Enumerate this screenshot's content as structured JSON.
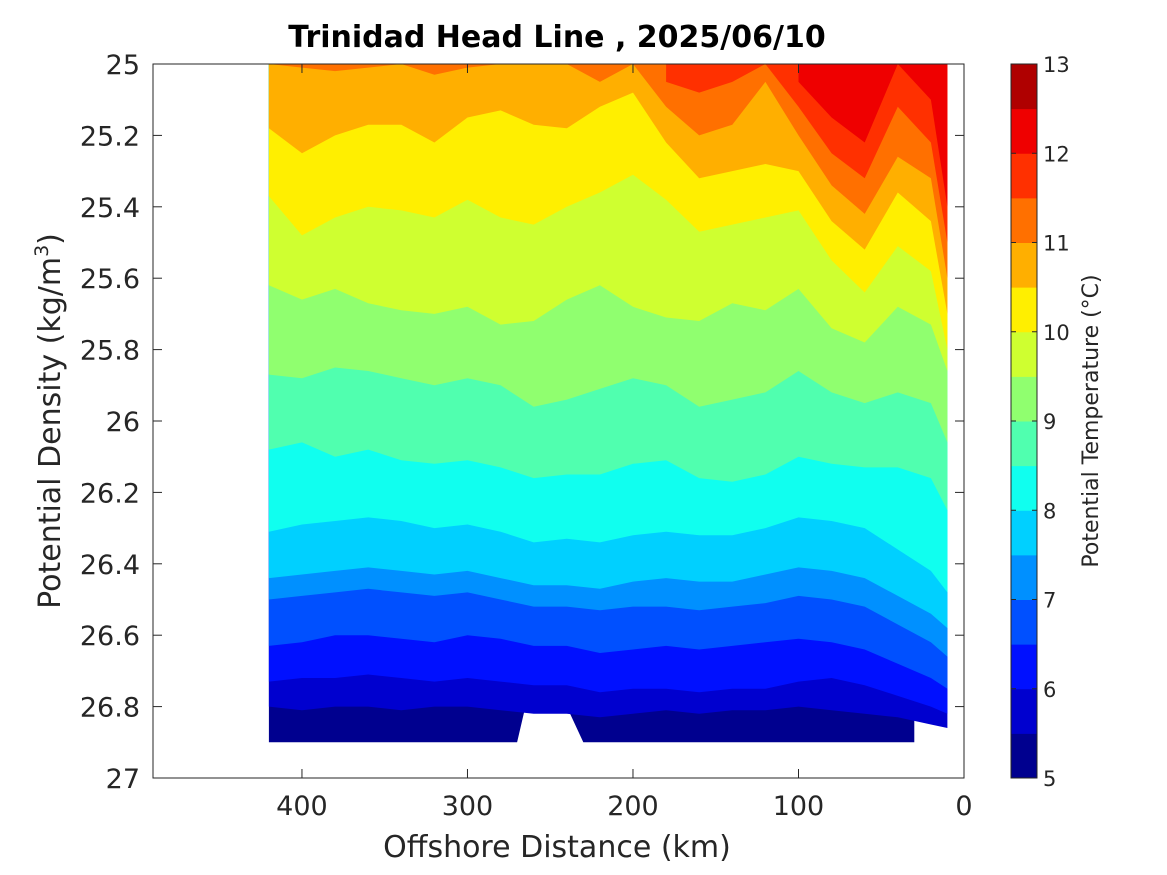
{
  "chart_data": {
    "type": "contour",
    "title": "Trinidad Head Line , 2025/06/10",
    "xlabel": "Offshore Distance (km)",
    "ylabel_main": "Potential Density (kg/m",
    "ylabel_sup": "3",
    "ylabel_close": ")",
    "x_reversed": true,
    "y_reversed": true,
    "xlim": [
      0,
      490
    ],
    "ylim": [
      25,
      27
    ],
    "xticks": [
      400,
      300,
      200,
      100,
      0
    ],
    "yticks": [
      25,
      25.2,
      25.4,
      25.6,
      25.8,
      26,
      26.2,
      26.4,
      26.6,
      26.8,
      27
    ],
    "ytick_labels": [
      "25",
      "25.2",
      "25.4",
      "25.6",
      "25.8",
      "26",
      "26.2",
      "26.4",
      "26.6",
      "26.8",
      "27"
    ],
    "colorbar": {
      "label": "Potential Temperature (°C)",
      "range": [
        5,
        13
      ],
      "ticks": [
        5,
        6,
        7,
        8,
        9,
        10,
        11,
        12,
        13
      ],
      "levels": [
        5,
        5.5,
        6,
        6.5,
        7,
        7.5,
        8,
        8.5,
        9,
        9.5,
        10,
        10.5,
        11,
        11.5,
        12,
        12.5,
        13
      ],
      "colors": [
        "#00008f",
        "#0000cf",
        "#0010ff",
        "#0050ff",
        "#0090ff",
        "#00d0ff",
        "#10ffef",
        "#50ffaf",
        "#90ff6f",
        "#cfff30",
        "#ffef00",
        "#ffaf00",
        "#ff7000",
        "#ff3000",
        "#ef0000",
        "#af0000"
      ]
    },
    "section": {
      "x_km": [
        420,
        400,
        380,
        360,
        340,
        320,
        300,
        280,
        260,
        240,
        220,
        200,
        180,
        160,
        140,
        120,
        100,
        80,
        60,
        40,
        20,
        10
      ],
      "isopycnal_of_isotherm": {
        "5.5": [
          26.8,
          26.81,
          26.8,
          26.8,
          26.81,
          26.8,
          26.8,
          26.81,
          26.82,
          26.82,
          26.83,
          26.82,
          26.81,
          26.82,
          26.81,
          26.81,
          26.8,
          26.81,
          26.82,
          26.83,
          26.85,
          26.86
        ],
        "6": [
          26.73,
          26.72,
          26.72,
          26.71,
          26.72,
          26.73,
          26.72,
          26.73,
          26.74,
          26.74,
          26.76,
          26.75,
          26.75,
          26.76,
          26.75,
          26.75,
          26.73,
          26.72,
          26.74,
          26.77,
          26.8,
          26.82
        ],
        "6.5": [
          26.63,
          26.62,
          26.6,
          26.6,
          26.61,
          26.62,
          26.6,
          26.61,
          26.63,
          26.63,
          26.65,
          26.64,
          26.63,
          26.64,
          26.63,
          26.62,
          26.61,
          26.62,
          26.64,
          26.68,
          26.72,
          26.75
        ],
        "7": [
          26.5,
          26.49,
          26.48,
          26.47,
          26.48,
          26.49,
          26.48,
          26.5,
          26.52,
          26.52,
          26.53,
          26.52,
          26.52,
          26.53,
          26.52,
          26.51,
          26.49,
          26.5,
          26.52,
          26.57,
          26.62,
          26.66
        ],
        "7.5": [
          26.44,
          26.43,
          26.42,
          26.41,
          26.42,
          26.43,
          26.42,
          26.44,
          26.46,
          26.46,
          26.47,
          26.45,
          26.44,
          26.45,
          26.45,
          26.43,
          26.41,
          26.42,
          26.44,
          26.49,
          26.54,
          26.58
        ],
        "8": [
          26.31,
          26.29,
          26.28,
          26.27,
          26.28,
          26.3,
          26.29,
          26.31,
          26.34,
          26.33,
          26.34,
          26.32,
          26.31,
          26.32,
          26.32,
          26.3,
          26.27,
          26.28,
          26.3,
          26.36,
          26.42,
          26.48
        ],
        "8.5": [
          26.08,
          26.06,
          26.1,
          26.08,
          26.11,
          26.12,
          26.11,
          26.13,
          26.16,
          26.15,
          26.15,
          26.12,
          26.11,
          26.16,
          26.17,
          26.15,
          26.1,
          26.12,
          26.13,
          26.13,
          26.16,
          26.25
        ],
        "9": [
          25.87,
          25.88,
          25.85,
          25.86,
          25.88,
          25.9,
          25.88,
          25.9,
          25.96,
          25.94,
          25.91,
          25.88,
          25.9,
          25.96,
          25.94,
          25.92,
          25.86,
          25.92,
          25.95,
          25.92,
          25.95,
          26.06
        ],
        "9.5": [
          25.62,
          25.66,
          25.63,
          25.67,
          25.69,
          25.7,
          25.68,
          25.73,
          25.72,
          25.66,
          25.62,
          25.68,
          25.71,
          25.72,
          25.67,
          25.69,
          25.63,
          25.74,
          25.78,
          25.68,
          25.73,
          25.86
        ],
        "10": [
          25.37,
          25.48,
          25.43,
          25.4,
          25.41,
          25.43,
          25.38,
          25.43,
          25.45,
          25.4,
          25.36,
          25.31,
          25.38,
          25.47,
          25.45,
          25.43,
          25.41,
          25.55,
          25.64,
          25.51,
          25.58,
          25.8
        ],
        "10.5": [
          25.18,
          25.25,
          25.2,
          25.17,
          25.17,
          25.22,
          25.15,
          25.13,
          25.17,
          25.18,
          25.12,
          25.08,
          25.22,
          25.32,
          25.3,
          25.28,
          25.3,
          25.44,
          25.52,
          25.36,
          25.44,
          25.7
        ],
        "11": [
          25.0,
          25.01,
          25.02,
          25.01,
          25.0,
          25.03,
          25.01,
          25.0,
          25.0,
          25.0,
          25.05,
          25.0,
          25.12,
          25.2,
          25.17,
          25.05,
          25.2,
          25.34,
          25.42,
          25.26,
          25.32,
          25.6
        ],
        "11.5": [
          null,
          null,
          null,
          null,
          null,
          null,
          null,
          null,
          null,
          null,
          null,
          null,
          25.05,
          25.08,
          25.05,
          25.0,
          25.12,
          25.25,
          25.32,
          25.12,
          25.22,
          25.5
        ],
        "12": [
          null,
          null,
          null,
          null,
          null,
          null,
          null,
          null,
          null,
          null,
          null,
          null,
          25.0,
          25.0,
          null,
          null,
          25.05,
          25.15,
          25.22,
          25.0,
          25.1,
          25.4
        ]
      }
    }
  }
}
